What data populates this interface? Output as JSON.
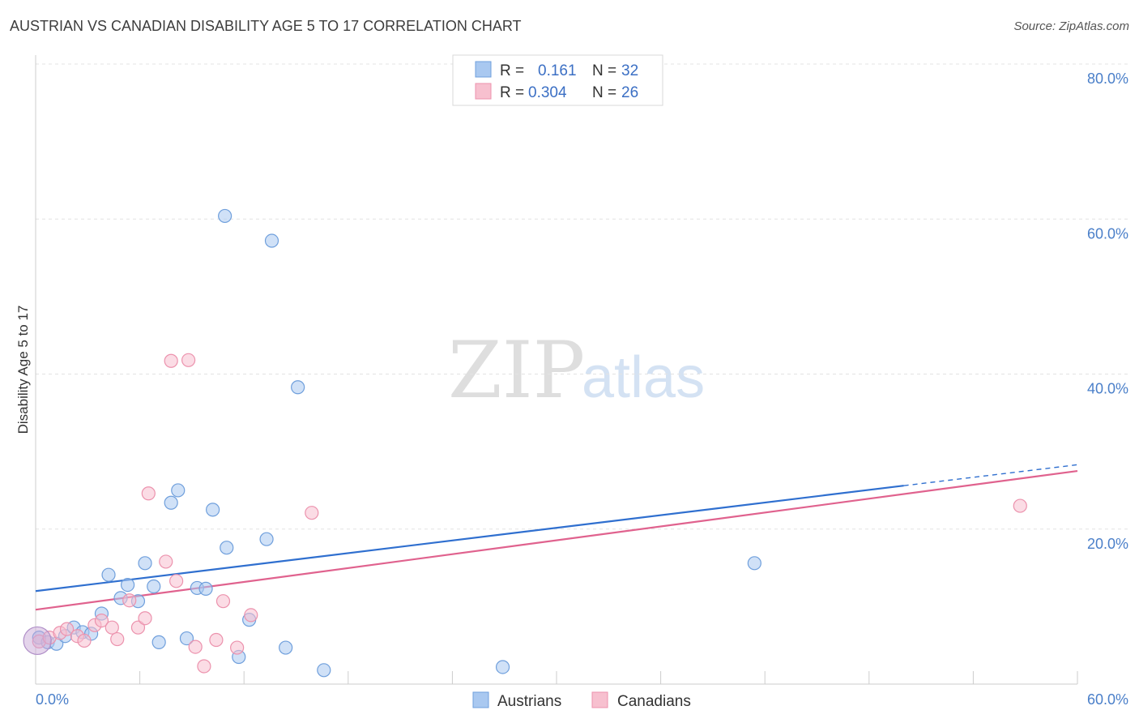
{
  "title": "AUSTRIAN VS CANADIAN DISABILITY AGE 5 TO 17 CORRELATION CHART",
  "source": "Source: ZipAtlas.com",
  "watermark": {
    "zip": "ZIP",
    "atlas": "atlas"
  },
  "chart_data": {
    "type": "scatter",
    "title": "AUSTRIAN VS CANADIAN DISABILITY AGE 5 TO 17 CORRELATION CHART",
    "xlabel": "",
    "ylabel": "Disability Age 5 to 17",
    "xlim": [
      0,
      60
    ],
    "ylim": [
      0,
      80
    ],
    "x_tick_labels": {
      "min": "0.0%",
      "max": "60.0%"
    },
    "y_ticks": [
      {
        "value": 20,
        "label": "20.0%"
      },
      {
        "value": 40,
        "label": "40.0%"
      },
      {
        "value": 60,
        "label": "60.0%"
      },
      {
        "value": 80,
        "label": "80.0%"
      }
    ],
    "legend": {
      "rows": [
        {
          "r_label": "R =",
          "r_value": "0.161",
          "n_label": "N =",
          "n_value": "32"
        },
        {
          "r_label": "R =",
          "r_value": "0.304",
          "n_label": "N =",
          "n_value": "26"
        }
      ]
    },
    "series": [
      {
        "name": "Austrians",
        "color": "#a9c8f0",
        "stroke": "#6f9fdc",
        "line_color": "#2f6fcf",
        "trend": {
          "x0": 0,
          "y0": 12.0,
          "x1": 50,
          "y1": 25.6,
          "dash_to_x": 60,
          "dash_to_y": 28.3
        },
        "points": [
          [
            0.2,
            6.0
          ],
          [
            0.7,
            5.4
          ],
          [
            1.2,
            5.2
          ],
          [
            1.7,
            6.2
          ],
          [
            2.2,
            7.3
          ],
          [
            2.7,
            6.7
          ],
          [
            3.2,
            6.5
          ],
          [
            3.8,
            9.1
          ],
          [
            4.2,
            14.1
          ],
          [
            4.9,
            11.1
          ],
          [
            5.3,
            12.8
          ],
          [
            5.9,
            10.7
          ],
          [
            6.3,
            15.6
          ],
          [
            6.8,
            12.6
          ],
          [
            7.1,
            5.4
          ],
          [
            7.8,
            23.4
          ],
          [
            8.2,
            25.0
          ],
          [
            8.7,
            5.9
          ],
          [
            9.3,
            12.4
          ],
          [
            9.8,
            12.3
          ],
          [
            10.2,
            22.5
          ],
          [
            10.9,
            60.4
          ],
          [
            11.0,
            17.6
          ],
          [
            11.7,
            3.5
          ],
          [
            12.3,
            8.3
          ],
          [
            13.3,
            18.7
          ],
          [
            13.6,
            57.2
          ],
          [
            14.4,
            4.7
          ],
          [
            15.1,
            38.3
          ],
          [
            16.6,
            1.8
          ],
          [
            26.9,
            2.2
          ],
          [
            41.4,
            15.6
          ]
        ]
      },
      {
        "name": "Canadians",
        "color": "#f7c0cf",
        "stroke": "#ec92ad",
        "line_color": "#e0628e",
        "trend": {
          "x0": 0,
          "y0": 9.6,
          "x1": 60,
          "y1": 27.5
        },
        "points": [
          [
            0.2,
            5.5
          ],
          [
            0.8,
            6.0
          ],
          [
            1.4,
            6.6
          ],
          [
            1.8,
            7.1
          ],
          [
            2.4,
            6.2
          ],
          [
            2.8,
            5.6
          ],
          [
            3.4,
            7.6
          ],
          [
            3.8,
            8.2
          ],
          [
            4.4,
            7.3
          ],
          [
            4.7,
            5.8
          ],
          [
            5.4,
            10.8
          ],
          [
            5.9,
            7.3
          ],
          [
            6.3,
            8.5
          ],
          [
            6.5,
            24.6
          ],
          [
            7.5,
            15.8
          ],
          [
            7.8,
            41.7
          ],
          [
            8.1,
            13.3
          ],
          [
            8.8,
            41.8
          ],
          [
            9.2,
            4.8
          ],
          [
            9.7,
            2.3
          ],
          [
            10.4,
            5.7
          ],
          [
            10.8,
            10.7
          ],
          [
            11.6,
            4.7
          ],
          [
            12.4,
            8.9
          ],
          [
            15.9,
            22.1
          ],
          [
            56.7,
            23.0
          ]
        ]
      }
    ]
  }
}
